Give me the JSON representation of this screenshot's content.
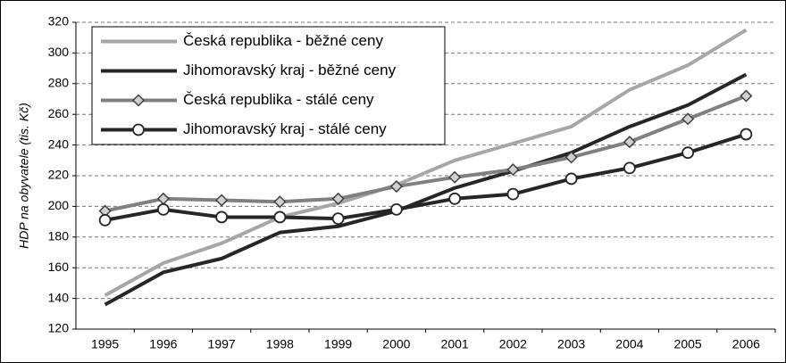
{
  "chart_data": {
    "type": "line",
    "y_label": "HDP na obyvatele (tis. Kč)",
    "categories": [
      "1995",
      "1996",
      "1997",
      "1998",
      "1999",
      "2000",
      "2001",
      "2002",
      "2003",
      "2004",
      "2005",
      "2006"
    ],
    "series": [
      {
        "name": "Česká republika - běžné ceny",
        "color": "#a6a6a6",
        "marker": "none",
        "values": [
          142,
          163,
          176,
          193,
          202,
          214,
          230,
          241,
          252,
          276,
          292,
          315
        ]
      },
      {
        "name": "Jihomoravský kraj - běžné ceny",
        "color": "#262626",
        "marker": "none",
        "values": [
          136,
          157,
          166,
          183,
          187,
          197,
          212,
          223,
          235,
          252,
          266,
          286
        ]
      },
      {
        "name": "Česká republika - stálé ceny",
        "color": "#808080",
        "marker": "diamond",
        "values": [
          197,
          205,
          204,
          203,
          205,
          213,
          219,
          224,
          232,
          242,
          257,
          272
        ]
      },
      {
        "name": "Jihomoravský kraj - stálé ceny",
        "color": "#262626",
        "marker": "circle",
        "values": [
          191,
          198,
          193,
          193,
          192,
          198,
          205,
          208,
          218,
          225,
          235,
          247
        ]
      }
    ],
    "ylim": [
      120,
      320
    ],
    "yticks": [
      120,
      140,
      160,
      180,
      200,
      220,
      240,
      260,
      280,
      300,
      320
    ],
    "grid": true,
    "legend": "top-left"
  }
}
